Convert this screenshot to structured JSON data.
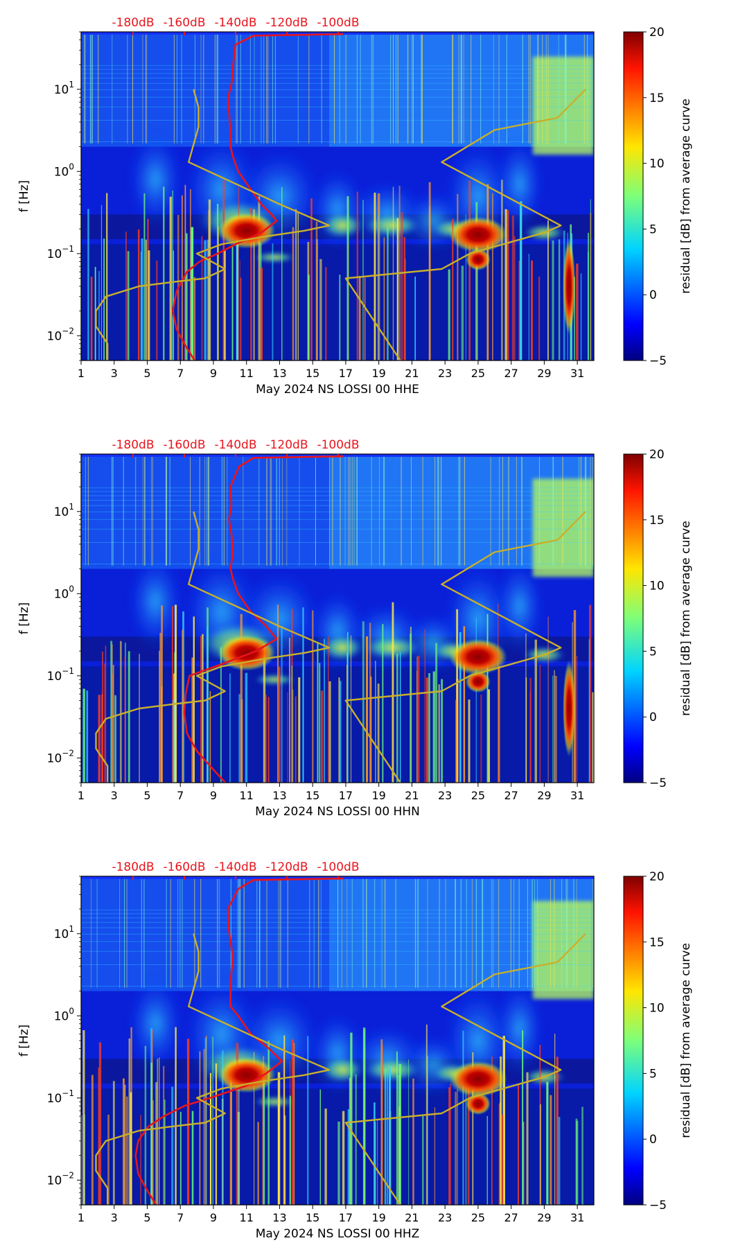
{
  "chart_data": [
    {
      "type": "heatmap",
      "station_label": "May 2024 NS LOSSI 00 HHE",
      "xlabel": "May 2024 NS LOSSI 00 HHE",
      "ylabel": "f [Hz]",
      "x_ticks": [
        1,
        3,
        5,
        7,
        9,
        11,
        13,
        15,
        17,
        19,
        21,
        23,
        25,
        27,
        29,
        31
      ],
      "xlim": [
        1,
        32
      ],
      "ylim": [
        0.005,
        50
      ],
      "yscale": "log",
      "y_tick_labels": [
        {
          "value": 10,
          "mantissa": "10",
          "exponent": "1"
        },
        {
          "value": 1,
          "mantissa": "10",
          "exponent": "0"
        },
        {
          "value": 0.1,
          "mantissa": "10",
          "exponent": "−1"
        },
        {
          "value": 0.01,
          "mantissa": "10",
          "exponent": "−2"
        }
      ],
      "top_axis": {
        "labels": [
          "-180dB",
          "-160dB",
          "-140dB",
          "-120dB",
          "-100dB"
        ],
        "values": [
          -180,
          -160,
          -140,
          -120,
          -100
        ],
        "color": "#e8141c"
      },
      "colorbar": {
        "label": "residual [dB] from average curve",
        "range": [
          -5,
          20
        ],
        "ticks": [
          -5,
          0,
          5,
          10,
          15,
          20
        ],
        "tick_labels": [
          "−5",
          "0",
          "5",
          "10",
          "15",
          "20"
        ],
        "colormap": "jet"
      },
      "hotspots": [
        {
          "day": 11,
          "f": 0.19,
          "level": 20
        },
        {
          "day": 25,
          "f": 0.17,
          "level": 20
        },
        {
          "day": 25,
          "f": 0.085,
          "level": 18
        },
        {
          "day": 30.5,
          "f": 0.04,
          "level": 18
        }
      ],
      "series": [
        {
          "name": "mean PSD",
          "color": "#e8141c",
          "x_units": "dB",
          "points": [
            [
              -156,
              0.005
            ],
            [
              -160,
              0.008
            ],
            [
              -163,
              0.012
            ],
            [
              -164.5,
              0.02
            ],
            [
              -163,
              0.035
            ],
            [
              -159,
              0.06
            ],
            [
              -154,
              0.08
            ],
            [
              -147,
              0.1
            ],
            [
              -140,
              0.13
            ],
            [
              -130,
              0.18
            ],
            [
              -124,
              0.25
            ],
            [
              -126,
              0.3
            ],
            [
              -130,
              0.4
            ],
            [
              -134,
              0.6
            ],
            [
              -139,
              1
            ],
            [
              -141,
              1.5
            ],
            [
              -142,
              2
            ],
            [
              -142,
              3
            ],
            [
              -141.5,
              5
            ],
            [
              -142.5,
              8
            ],
            [
              -142,
              12
            ],
            [
              -142,
              20
            ],
            [
              -139,
              35
            ],
            [
              -133,
              45
            ],
            [
              -98,
              47
            ]
          ]
        },
        {
          "name": "reference",
          "color": "#c9b02b",
          "x_units": "day",
          "points": [
            [
              2.6,
              0.005
            ],
            [
              2.6,
              0.008
            ],
            [
              1.9,
              0.013
            ],
            [
              1.9,
              0.02
            ],
            [
              2.5,
              0.03
            ],
            [
              4.5,
              0.04
            ],
            [
              6.5,
              0.045
            ],
            [
              8.5,
              0.05
            ],
            [
              9.7,
              0.065
            ],
            [
              8.0,
              0.1
            ],
            [
              9.5,
              0.13
            ],
            [
              12,
              0.16
            ],
            [
              14.5,
              0.19
            ],
            [
              16,
              0.22
            ],
            [
              13,
              0.4
            ],
            [
              7.5,
              1.3
            ],
            [
              8.1,
              3.5
            ],
            [
              8.1,
              6
            ],
            [
              7.8,
              10
            ]
          ]
        },
        {
          "name": "reference-2",
          "color": "#c9b02b",
          "x_units": "day",
          "points": [
            [
              20.3,
              0.005
            ],
            [
              17,
              0.05
            ],
            [
              22.8,
              0.065
            ],
            [
              24.5,
              0.1
            ],
            [
              29,
              0.18
            ],
            [
              30,
              0.22
            ],
            [
              22.8,
              1.3
            ],
            [
              26,
              3.2
            ],
            [
              29.8,
              4.5
            ],
            [
              31.5,
              10
            ]
          ]
        }
      ]
    },
    {
      "type": "heatmap",
      "station_label": "May 2024 NS LOSSI 00 HHN",
      "xlabel": "May 2024 NS LOSSI 00 HHN",
      "ylabel": "f [Hz]",
      "x_ticks": [
        1,
        3,
        5,
        7,
        9,
        11,
        13,
        15,
        17,
        19,
        21,
        23,
        25,
        27,
        29,
        31
      ],
      "xlim": [
        1,
        32
      ],
      "ylim": [
        0.005,
        50
      ],
      "yscale": "log",
      "y_tick_labels": [
        {
          "value": 10,
          "mantissa": "10",
          "exponent": "1"
        },
        {
          "value": 1,
          "mantissa": "10",
          "exponent": "0"
        },
        {
          "value": 0.1,
          "mantissa": "10",
          "exponent": "−1"
        },
        {
          "value": 0.01,
          "mantissa": "10",
          "exponent": "−2"
        }
      ],
      "top_axis": {
        "labels": [
          "-180dB",
          "-160dB",
          "-140dB",
          "-120dB",
          "-100dB"
        ],
        "values": [
          -180,
          -160,
          -140,
          -120,
          -100
        ],
        "color": "#e8141c"
      },
      "colorbar": {
        "label": "residual [dB] from average curve",
        "range": [
          -5,
          20
        ],
        "ticks": [
          -5,
          0,
          5,
          10,
          15,
          20
        ],
        "tick_labels": [
          "−5",
          "0",
          "5",
          "10",
          "15",
          "20"
        ],
        "colormap": "jet"
      },
      "hotspots": [
        {
          "day": 11,
          "f": 0.19,
          "level": 20
        },
        {
          "day": 25,
          "f": 0.17,
          "level": 20
        },
        {
          "day": 25,
          "f": 0.085,
          "level": 18
        },
        {
          "day": 30.5,
          "f": 0.04,
          "level": 18
        }
      ],
      "series": [
        {
          "name": "mean PSD",
          "color": "#e8141c",
          "x_units": "dB",
          "points": [
            [
              -144,
              0.005
            ],
            [
              -150,
              0.008
            ],
            [
              -155,
              0.012
            ],
            [
              -159,
              0.02
            ],
            [
              -160,
              0.035
            ],
            [
              -159.5,
              0.06
            ],
            [
              -158,
              0.1
            ],
            [
              -145,
              0.14
            ],
            [
              -132,
              0.2
            ],
            [
              -124,
              0.28
            ],
            [
              -128,
              0.4
            ],
            [
              -134,
              0.6
            ],
            [
              -139,
              1
            ],
            [
              -141,
              1.5
            ],
            [
              -142,
              2
            ],
            [
              -142,
              3
            ],
            [
              -141.5,
              5
            ],
            [
              -142.5,
              8
            ],
            [
              -142,
              12
            ],
            [
              -142,
              20
            ],
            [
              -139,
              35
            ],
            [
              -133,
              45
            ],
            [
              -98,
              47
            ]
          ]
        },
        {
          "name": "reference",
          "color": "#c9b02b",
          "x_units": "day",
          "points": [
            [
              2.6,
              0.005
            ],
            [
              2.6,
              0.008
            ],
            [
              1.9,
              0.013
            ],
            [
              1.9,
              0.02
            ],
            [
              2.5,
              0.03
            ],
            [
              4.5,
              0.04
            ],
            [
              6.5,
              0.045
            ],
            [
              8.5,
              0.05
            ],
            [
              9.7,
              0.065
            ],
            [
              8.0,
              0.1
            ],
            [
              9.5,
              0.13
            ],
            [
              12,
              0.16
            ],
            [
              14.5,
              0.19
            ],
            [
              16,
              0.22
            ],
            [
              13,
              0.4
            ],
            [
              7.5,
              1.3
            ],
            [
              8.1,
              3.5
            ],
            [
              8.1,
              6
            ],
            [
              7.8,
              10
            ]
          ]
        },
        {
          "name": "reference-2",
          "color": "#c9b02b",
          "x_units": "day",
          "points": [
            [
              20.3,
              0.005
            ],
            [
              17,
              0.05
            ],
            [
              22.8,
              0.065
            ],
            [
              24.5,
              0.1
            ],
            [
              29,
              0.18
            ],
            [
              30,
              0.22
            ],
            [
              22.8,
              1.3
            ],
            [
              26,
              3.2
            ],
            [
              29.8,
              4.5
            ],
            [
              31.5,
              10
            ]
          ]
        }
      ]
    },
    {
      "type": "heatmap",
      "station_label": "May 2024 NS LOSSI 00 HHZ",
      "xlabel": "May 2024 NS LOSSI 00 HHZ",
      "ylabel": "f [Hz]",
      "x_ticks": [
        1,
        3,
        5,
        7,
        9,
        11,
        13,
        15,
        17,
        19,
        21,
        23,
        25,
        27,
        29,
        31
      ],
      "xlim": [
        1,
        32
      ],
      "ylim": [
        0.005,
        50
      ],
      "yscale": "log",
      "y_tick_labels": [
        {
          "value": 10,
          "mantissa": "10",
          "exponent": "1"
        },
        {
          "value": 1,
          "mantissa": "10",
          "exponent": "0"
        },
        {
          "value": 0.1,
          "mantissa": "10",
          "exponent": "−1"
        },
        {
          "value": 0.01,
          "mantissa": "10",
          "exponent": "−2"
        }
      ],
      "top_axis": {
        "labels": [
          "-180dB",
          "-160dB",
          "-140dB",
          "-120dB",
          "-100dB"
        ],
        "values": [
          -180,
          -160,
          -140,
          -120,
          -100
        ],
        "color": "#e8141c"
      },
      "colorbar": {
        "label": "residual [dB] from average curve",
        "range": [
          -5,
          20
        ],
        "ticks": [
          -5,
          0,
          5,
          10,
          15,
          20
        ],
        "tick_labels": [
          "−5",
          "0",
          "5",
          "10",
          "15",
          "20"
        ],
        "colormap": "jet"
      },
      "hotspots": [
        {
          "day": 11,
          "f": 0.19,
          "level": 20
        },
        {
          "day": 25,
          "f": 0.17,
          "level": 20
        },
        {
          "day": 25,
          "f": 0.085,
          "level": 18
        }
      ],
      "series": [
        {
          "name": "mean PSD",
          "color": "#e8141c",
          "x_units": "dB",
          "points": [
            [
              -171,
              0.005
            ],
            [
              -175,
              0.008
            ],
            [
              -178,
              0.012
            ],
            [
              -179,
              0.02
            ],
            [
              -178,
              0.03
            ],
            [
              -174,
              0.045
            ],
            [
              -168,
              0.06
            ],
            [
              -160,
              0.08
            ],
            [
              -150,
              0.1
            ],
            [
              -136,
              0.14
            ],
            [
              -128,
              0.2
            ],
            [
              -122,
              0.28
            ],
            [
              -127,
              0.4
            ],
            [
              -134,
              0.6
            ],
            [
              -139,
              1
            ],
            [
              -142,
              1.3
            ],
            [
              -142,
              2
            ],
            [
              -141.5,
              3
            ],
            [
              -140,
              5
            ],
            [
              -141,
              8
            ],
            [
              -142,
              12
            ],
            [
              -142,
              20
            ],
            [
              -139,
              35
            ],
            [
              -133,
              45
            ],
            [
              -98,
              47
            ]
          ]
        },
        {
          "name": "reference",
          "color": "#c9b02b",
          "x_units": "day",
          "points": [
            [
              2.6,
              0.005
            ],
            [
              2.6,
              0.008
            ],
            [
              1.9,
              0.013
            ],
            [
              1.9,
              0.02
            ],
            [
              2.5,
              0.03
            ],
            [
              4.5,
              0.04
            ],
            [
              6.5,
              0.045
            ],
            [
              8.5,
              0.05
            ],
            [
              9.7,
              0.065
            ],
            [
              8.0,
              0.1
            ],
            [
              9.5,
              0.13
            ],
            [
              12,
              0.16
            ],
            [
              14.5,
              0.19
            ],
            [
              16,
              0.22
            ],
            [
              13,
              0.4
            ],
            [
              7.5,
              1.3
            ],
            [
              8.1,
              3.5
            ],
            [
              8.1,
              6
            ],
            [
              7.8,
              10
            ]
          ]
        },
        {
          "name": "reference-2",
          "color": "#c9b02b",
          "x_units": "day",
          "points": [
            [
              20.3,
              0.005
            ],
            [
              17,
              0.05
            ],
            [
              22.8,
              0.065
            ],
            [
              24.5,
              0.1
            ],
            [
              29,
              0.18
            ],
            [
              30,
              0.22
            ],
            [
              22.8,
              1.3
            ],
            [
              26,
              3.2
            ],
            [
              29.8,
              4.5
            ],
            [
              31.5,
              10
            ]
          ]
        }
      ]
    }
  ]
}
